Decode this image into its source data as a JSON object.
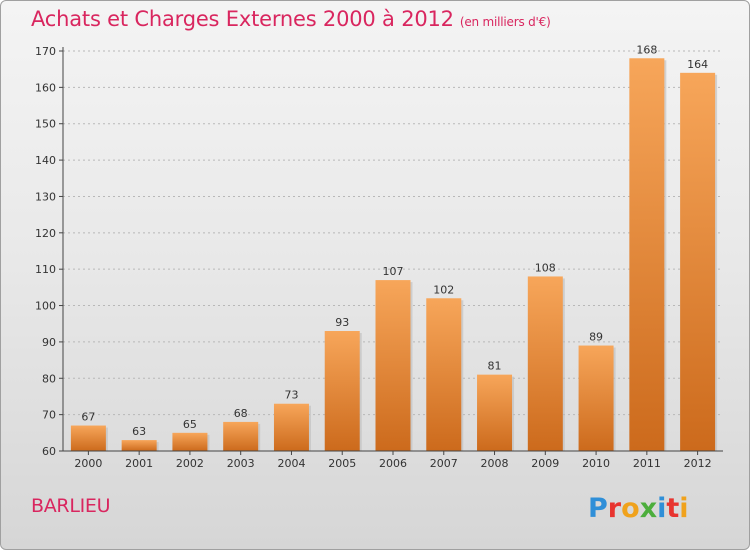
{
  "header": {
    "title": "Achats et Charges Externes 2000 à 2012",
    "subtitle": "(en milliers d'€)"
  },
  "place_label": "BARLIEU",
  "logo": {
    "text": "Proxiti"
  },
  "colors": {
    "title": "#d9265f",
    "bar_light": "#f7a65a",
    "bar_dark": "#cc6a1c",
    "axis": "#444444"
  },
  "chart_data": {
    "type": "bar",
    "categories": [
      "2000",
      "2001",
      "2002",
      "2003",
      "2004",
      "2005",
      "2006",
      "2007",
      "2008",
      "2009",
      "2010",
      "2011",
      "2012"
    ],
    "values": [
      67,
      63,
      65,
      68,
      73,
      93,
      107,
      102,
      81,
      108,
      89,
      168,
      164
    ],
    "title": "Achats et Charges Externes 2000 à 2012",
    "subtitle": "(en milliers d'€)",
    "xlabel": "",
    "ylabel": "",
    "ylim": [
      60,
      170
    ],
    "yticks": [
      60,
      70,
      80,
      90,
      100,
      110,
      120,
      130,
      140,
      150,
      160,
      170
    ],
    "grid": true
  }
}
